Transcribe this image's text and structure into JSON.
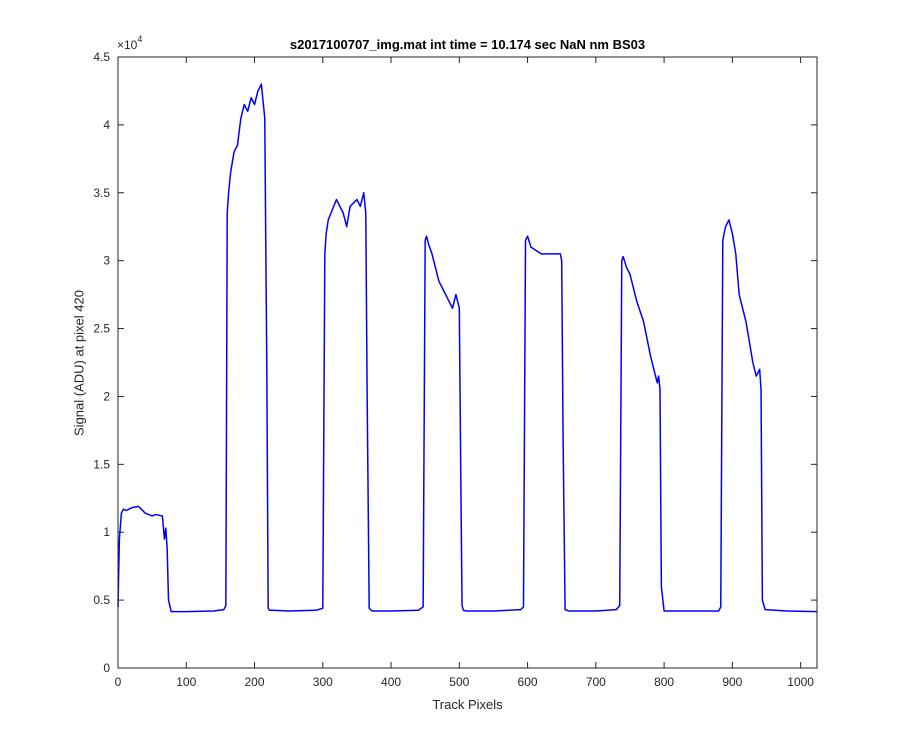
{
  "chart_data": {
    "type": "line",
    "title": "s2017100707_img.mat int time = 10.174 sec  NaN nm BS03",
    "xlabel": "Track Pixels",
    "ylabel": "Signal (ADU) at pixel 420",
    "y_exponent_base": "×10",
    "y_exponent_power": "4",
    "xlim": [
      0,
      1024
    ],
    "ylim": [
      0,
      45000
    ],
    "x_ticks": [
      0,
      100,
      200,
      300,
      400,
      500,
      600,
      700,
      800,
      900,
      1000
    ],
    "x_tick_labels": [
      "0",
      "100",
      "200",
      "300",
      "400",
      "500",
      "600",
      "700",
      "800",
      "900",
      "1000"
    ],
    "y_ticks": [
      0,
      5000,
      10000,
      15000,
      20000,
      25000,
      30000,
      35000,
      40000,
      45000
    ],
    "y_tick_labels": [
      "0",
      "0.5",
      "1",
      "1.5",
      "2",
      "2.5",
      "3",
      "3.5",
      "4",
      "4.5"
    ],
    "grid": false,
    "line_color": "#0000ff",
    "series": [
      {
        "x": [
          0,
          2,
          5,
          8,
          12,
          20,
          30,
          40,
          50,
          55,
          65,
          68,
          70,
          72,
          74,
          78,
          100,
          140,
          155,
          158,
          160,
          162,
          165,
          170,
          175,
          180,
          185,
          190,
          195,
          200,
          205,
          210,
          215,
          218,
          220,
          222,
          226,
          250,
          290,
          300,
          303,
          305,
          308,
          312,
          320,
          330,
          335,
          340,
          350,
          355,
          360,
          363,
          365,
          368,
          372,
          400,
          440,
          447,
          450,
          452,
          455,
          460,
          465,
          470,
          480,
          490,
          495,
          500,
          502,
          504,
          506,
          510,
          550,
          590,
          594,
          597,
          600,
          605,
          620,
          640,
          648,
          650,
          652,
          655,
          660,
          700,
          730,
          735,
          738,
          740,
          745,
          750,
          760,
          770,
          780,
          785,
          790,
          792,
          794,
          796,
          800,
          840,
          880,
          883,
          886,
          890,
          895,
          900,
          905,
          910,
          920,
          930,
          935,
          940,
          942,
          944,
          948,
          980,
          1024
        ],
        "y": [
          4500,
          9500,
          11400,
          11700,
          11600,
          11800,
          11900,
          11400,
          11200,
          11300,
          11200,
          9500,
          10300,
          8800,
          5000,
          4150,
          4150,
          4200,
          4300,
          4600,
          33500,
          35000,
          36500,
          38000,
          38500,
          40500,
          41500,
          41000,
          42000,
          41500,
          42500,
          43000,
          40500,
          22000,
          4400,
          4250,
          4250,
          4200,
          4250,
          4400,
          30500,
          32000,
          33000,
          33500,
          34500,
          33500,
          32500,
          34000,
          34500,
          34000,
          35000,
          33500,
          20000,
          4400,
          4200,
          4200,
          4250,
          4500,
          31500,
          31800,
          31200,
          30500,
          29500,
          28500,
          27500,
          26500,
          27500,
          26500,
          15000,
          4600,
          4250,
          4200,
          4200,
          4300,
          4500,
          31500,
          31800,
          31000,
          30500,
          30500,
          30500,
          30000,
          17000,
          4300,
          4200,
          4200,
          4300,
          4600,
          30000,
          30300,
          29500,
          29000,
          27000,
          25500,
          23000,
          22000,
          21000,
          21500,
          20500,
          6000,
          4200,
          4200,
          4200,
          4500,
          31500,
          32500,
          33000,
          32000,
          30500,
          27500,
          25500,
          22500,
          21500,
          22000,
          20500,
          5000,
          4300,
          4200,
          4150
        ]
      }
    ]
  }
}
